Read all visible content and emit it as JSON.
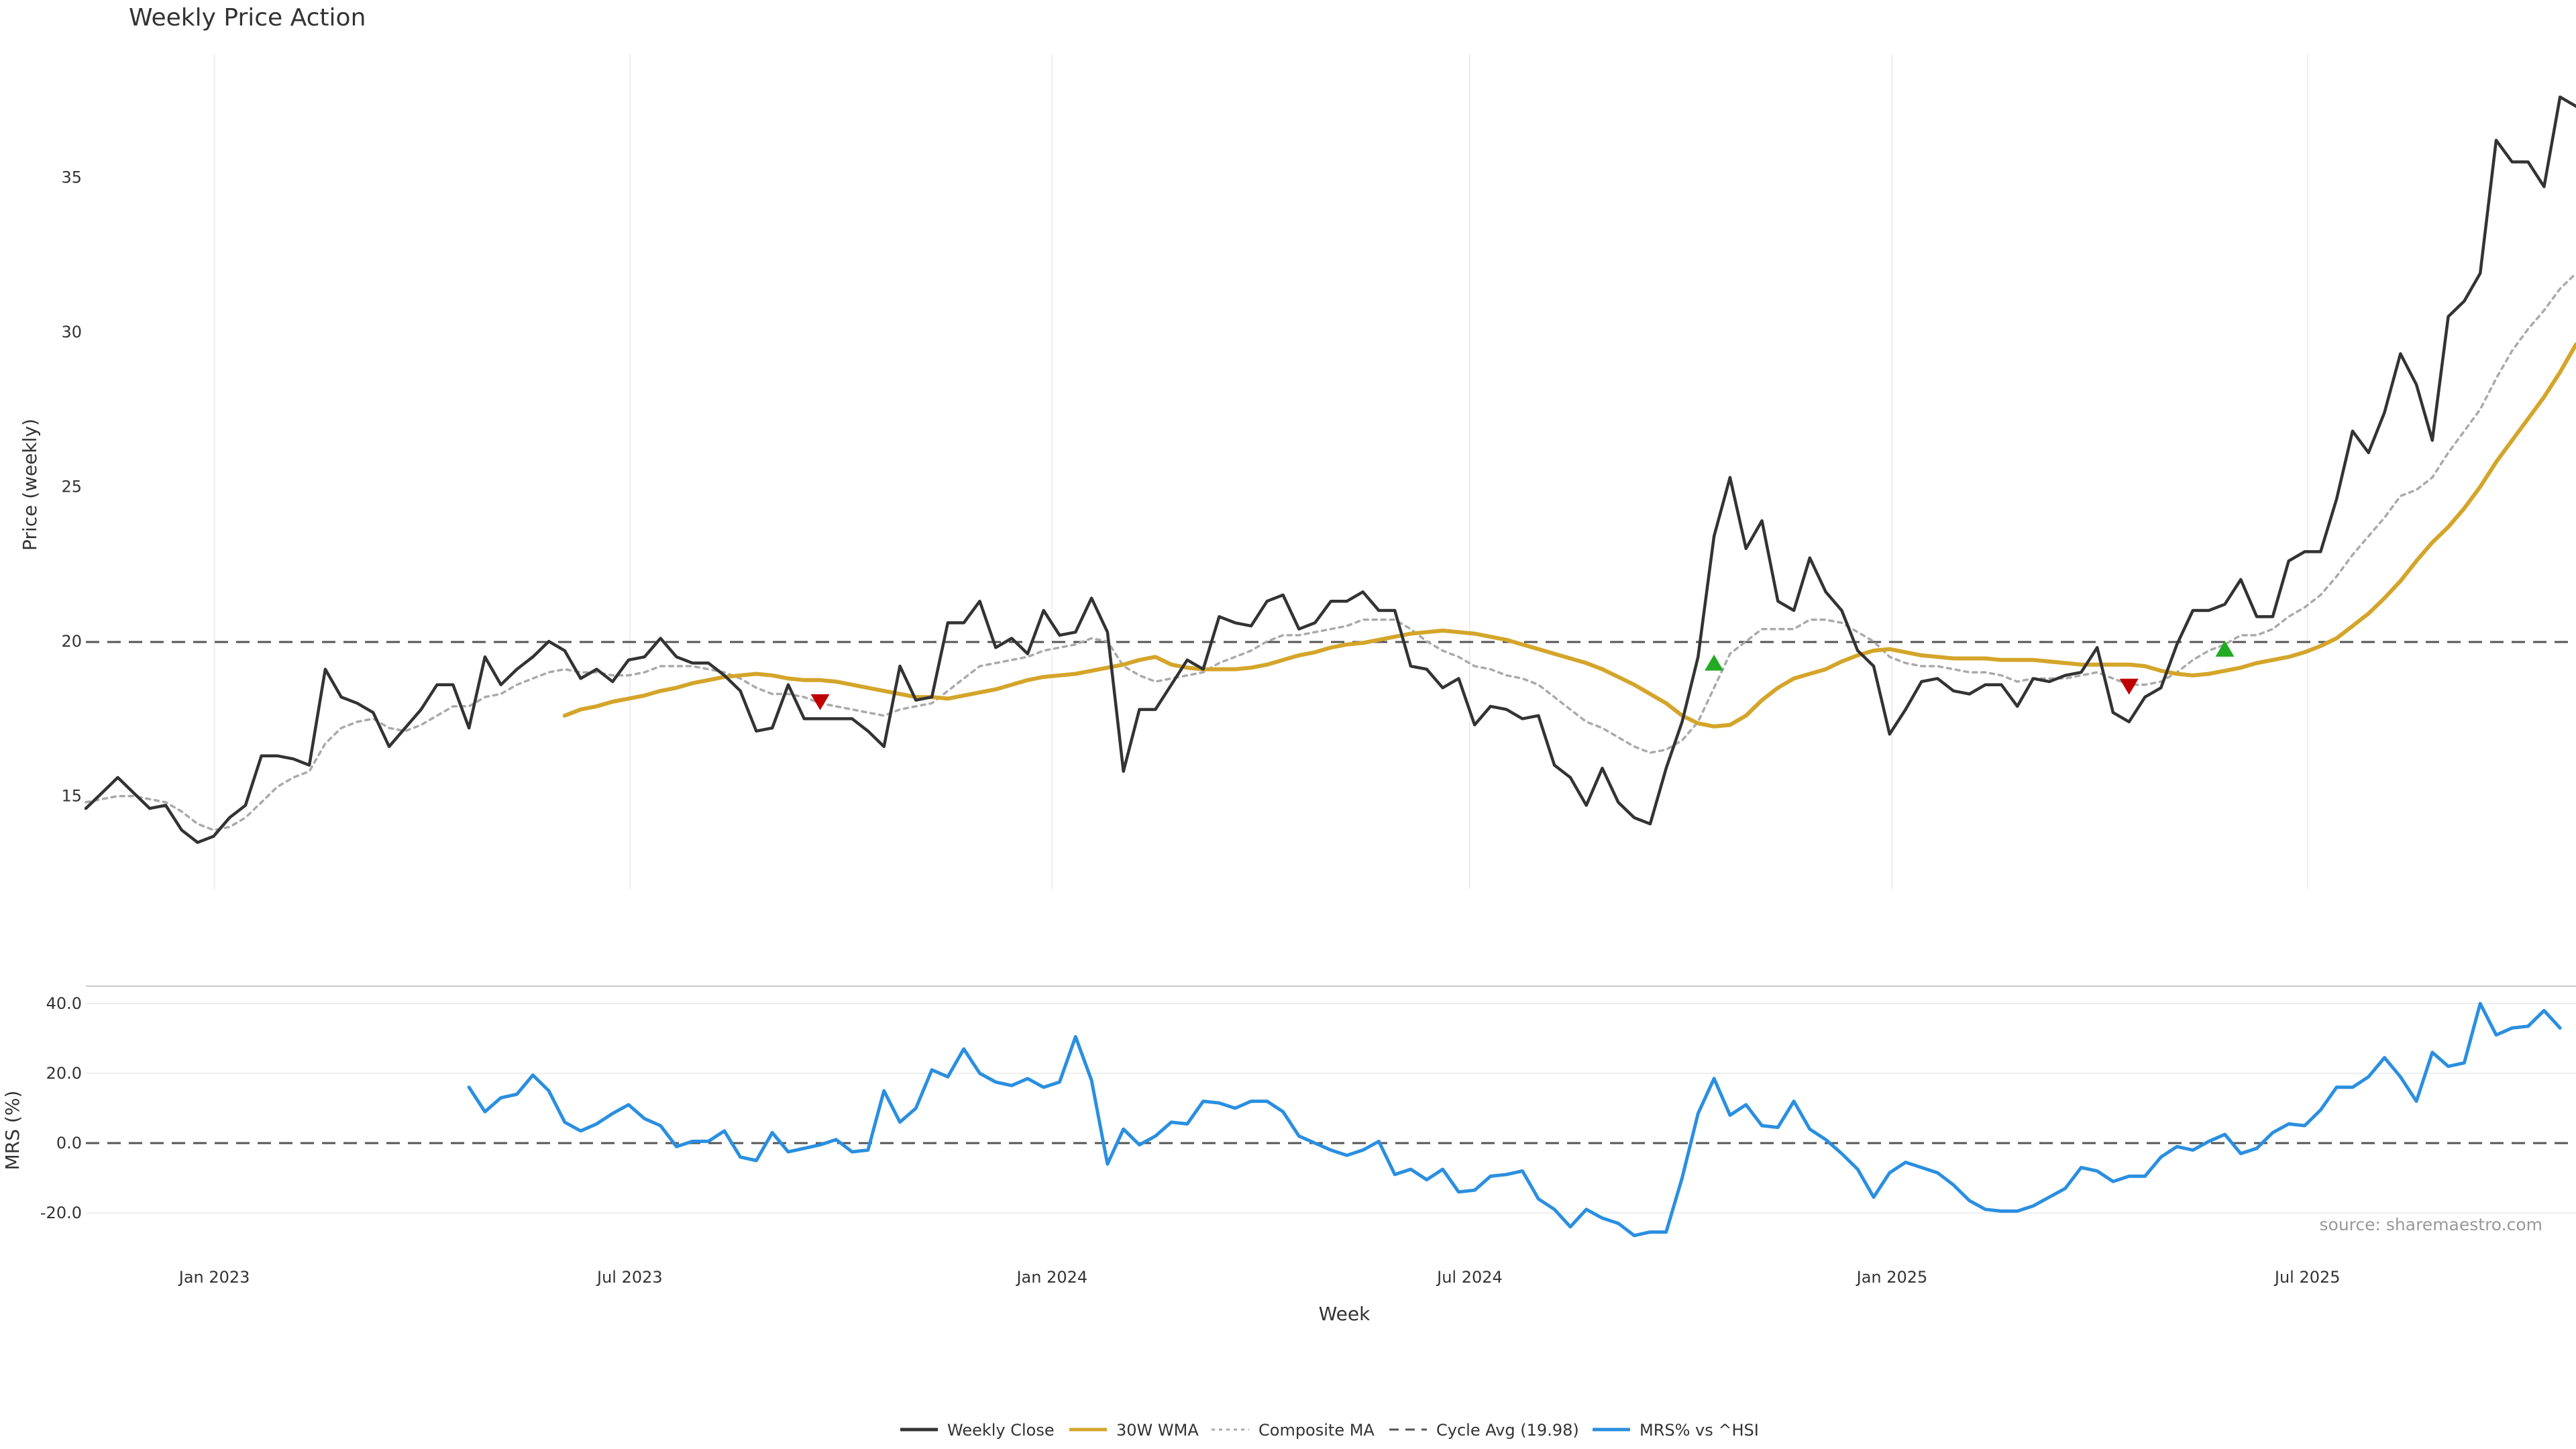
{
  "chart_data": [
    {
      "type": "line",
      "title": "Weekly Price Action",
      "xlabel": "Week",
      "ylabel": "Price (weekly)",
      "ylim": [
        12,
        39
      ],
      "yticks": [
        15,
        20,
        25,
        30,
        35
      ],
      "xticks": [
        {
          "date": "2023-01-01",
          "label": "Jan 2023"
        },
        {
          "date": "2023-07-01",
          "label": "Jul 2023"
        },
        {
          "date": "2024-01-01",
          "label": "Jan 2024"
        },
        {
          "date": "2024-07-01",
          "label": "Jul 2024"
        },
        {
          "date": "2025-01-01",
          "label": "Jan 2025"
        },
        {
          "date": "2025-07-01",
          "label": "Jul 2025"
        }
      ],
      "x_first_week": "2022-11-06",
      "x_last_week": "2025-10-26",
      "grid": true,
      "reference_line": {
        "name": "Cycle Avg (19.98)",
        "value": 19.98
      },
      "series": [
        {
          "name": "Weekly Close",
          "color": "#333333",
          "values": [
            14.6,
            15.1,
            15.6,
            15.1,
            14.6,
            14.7,
            13.9,
            13.5,
            13.7,
            14.3,
            14.7,
            16.3,
            16.3,
            16.2,
            16.0,
            19.1,
            18.2,
            18.0,
            17.7,
            16.6,
            17.2,
            17.8,
            18.6,
            18.6,
            17.2,
            19.5,
            18.6,
            19.1,
            19.5,
            20.0,
            19.7,
            18.8,
            19.1,
            18.7,
            19.4,
            19.5,
            20.1,
            19.5,
            19.3,
            19.3,
            18.9,
            18.4,
            17.1,
            17.2,
            18.6,
            17.5,
            17.5,
            17.5,
            17.5,
            17.1,
            16.6,
            19.2,
            18.1,
            18.2,
            20.6,
            20.6,
            21.3,
            19.8,
            20.1,
            19.6,
            21.0,
            20.2,
            20.3,
            21.4,
            20.3,
            15.8,
            17.8,
            17.8,
            18.6,
            19.4,
            19.1,
            20.8,
            20.6,
            20.5,
            21.3,
            21.5,
            20.4,
            20.6,
            21.3,
            21.3,
            21.6,
            21.0,
            21.0,
            19.2,
            19.1,
            18.5,
            18.8,
            17.3,
            17.9,
            17.8,
            17.5,
            17.6,
            16.0,
            15.6,
            14.7,
            15.9,
            14.8,
            14.3,
            14.1,
            15.9,
            17.4,
            19.5,
            23.4,
            25.3,
            23.0,
            23.9,
            21.3,
            21.0,
            22.7,
            21.6,
            21.0,
            19.7,
            19.2,
            17.0,
            17.8,
            18.7,
            18.8,
            18.4,
            18.3,
            18.6,
            18.6,
            17.9,
            18.8,
            18.7,
            18.9,
            19.0,
            19.8,
            17.7,
            17.4,
            18.2,
            18.5,
            19.9,
            21.0,
            21.0,
            21.2,
            22.0,
            20.8,
            20.8,
            22.6,
            22.9,
            22.9,
            24.6,
            26.8,
            26.1,
            27.4,
            29.3,
            28.3,
            26.5,
            30.5,
            31.0,
            31.9,
            36.2,
            35.5,
            35.5,
            34.7,
            37.6,
            37.3
          ]
        },
        {
          "name": "30W WMA",
          "color": "#D4A52A",
          "start_index": 30,
          "values": [
            17.6,
            17.8,
            17.9,
            18.05,
            18.15,
            18.25,
            18.4,
            18.5,
            18.65,
            18.75,
            18.85,
            18.9,
            18.95,
            18.9,
            18.8,
            18.75,
            18.75,
            18.7,
            18.6,
            18.5,
            18.4,
            18.3,
            18.2,
            18.2,
            18.15,
            18.25,
            18.35,
            18.45,
            18.6,
            18.75,
            18.85,
            18.9,
            18.95,
            19.05,
            19.15,
            19.25,
            19.4,
            19.5,
            19.25,
            19.15,
            19.1,
            19.1,
            19.1,
            19.15,
            19.25,
            19.4,
            19.55,
            19.65,
            19.8,
            19.9,
            19.95,
            20.05,
            20.15,
            20.25,
            20.3,
            20.35,
            20.3,
            20.25,
            20.15,
            20.05,
            19.9,
            19.75,
            19.6,
            19.45,
            19.3,
            19.1,
            18.85,
            18.6,
            18.3,
            18.0,
            17.6,
            17.35,
            17.25,
            17.3,
            17.6,
            18.1,
            18.5,
            18.8,
            18.95,
            19.1,
            19.35,
            19.55,
            19.7,
            19.75,
            19.65,
            19.55,
            19.5,
            19.45,
            19.45,
            19.45,
            19.4,
            19.4,
            19.4,
            19.35,
            19.3,
            19.25,
            19.25,
            19.25,
            19.25,
            19.2,
            19.05,
            18.95,
            18.9,
            18.95,
            19.05,
            19.15,
            19.3,
            19.4,
            19.5,
            19.65,
            19.85,
            20.1,
            20.5,
            20.9,
            21.4,
            21.95,
            22.6,
            23.2,
            23.7,
            24.3,
            25.0,
            25.8,
            26.5,
            27.2,
            27.9,
            28.7,
            29.6
          ]
        },
        {
          "name": "Composite MA",
          "color": "#aaaaaa",
          "values": [
            14.8,
            14.9,
            15.0,
            15.0,
            14.9,
            14.8,
            14.5,
            14.1,
            13.9,
            14.0,
            14.3,
            14.8,
            15.3,
            15.6,
            15.8,
            16.7,
            17.2,
            17.4,
            17.5,
            17.2,
            17.1,
            17.3,
            17.6,
            17.9,
            17.9,
            18.2,
            18.3,
            18.6,
            18.8,
            19.0,
            19.1,
            19.0,
            19.0,
            18.9,
            18.9,
            19.0,
            19.2,
            19.2,
            19.2,
            19.1,
            19.0,
            18.8,
            18.5,
            18.3,
            18.3,
            18.2,
            18.0,
            17.9,
            17.8,
            17.7,
            17.6,
            17.8,
            17.9,
            18.0,
            18.4,
            18.8,
            19.2,
            19.3,
            19.4,
            19.5,
            19.7,
            19.8,
            19.9,
            20.1,
            20.0,
            19.2,
            18.9,
            18.7,
            18.8,
            18.9,
            19.0,
            19.3,
            19.5,
            19.7,
            20.0,
            20.2,
            20.2,
            20.3,
            20.4,
            20.5,
            20.7,
            20.7,
            20.7,
            20.4,
            20.0,
            19.7,
            19.5,
            19.2,
            19.1,
            18.9,
            18.8,
            18.6,
            18.2,
            17.8,
            17.4,
            17.2,
            16.9,
            16.6,
            16.4,
            16.5,
            16.8,
            17.4,
            18.5,
            19.6,
            20.0,
            20.4,
            20.4,
            20.4,
            20.7,
            20.7,
            20.6,
            20.3,
            20.0,
            19.5,
            19.3,
            19.2,
            19.2,
            19.1,
            19.0,
            19.0,
            18.9,
            18.7,
            18.8,
            18.8,
            18.8,
            18.9,
            19.0,
            18.8,
            18.6,
            18.6,
            18.7,
            19.0,
            19.4,
            19.7,
            19.9,
            20.2,
            20.2,
            20.4,
            20.8,
            21.1,
            21.5,
            22.1,
            22.8,
            23.4,
            24.0,
            24.7,
            24.9,
            25.3,
            26.1,
            26.8,
            27.5,
            28.5,
            29.4,
            30.1,
            30.7,
            31.4,
            31.9
          ]
        }
      ],
      "markers": [
        {
          "kind": "sell",
          "color": "#c00000",
          "index": 46,
          "y": 18.05
        },
        {
          "kind": "buy",
          "color": "#22aa22",
          "index": 102,
          "y": 19.3
        },
        {
          "kind": "sell",
          "color": "#c00000",
          "index": 128,
          "y": 18.55
        },
        {
          "kind": "buy",
          "color": "#22aa22",
          "index": 134,
          "y": 19.75
        }
      ]
    },
    {
      "type": "line",
      "xlabel": "Week",
      "ylabel": "MRS (%)",
      "ylim": [
        -30,
        45
      ],
      "yticks": [
        -20.0,
        0.0,
        20.0,
        40.0
      ],
      "ytick_labels": [
        "-20.0",
        "0.0",
        "20.0",
        "40.0"
      ],
      "reference_line": {
        "value": 0
      },
      "series": [
        {
          "name": "MRS% vs ^HSI",
          "color": "#2A8FE0",
          "start_index": 24,
          "values": [
            16,
            9,
            13,
            14,
            19.5,
            15,
            6,
            3.5,
            5.5,
            8.5,
            11,
            7,
            5,
            -1,
            0.5,
            0.5,
            3.5,
            -4,
            -5,
            3,
            -2.5,
            -1.5,
            -0.5,
            1,
            -2.5,
            -2,
            15,
            6,
            10,
            21,
            19,
            27,
            20,
            17.5,
            16.5,
            18.5,
            16,
            17.5,
            30.5,
            18,
            -6,
            4,
            -0.5,
            2,
            6,
            5.5,
            12,
            11.5,
            10,
            12,
            12,
            9,
            2,
            0,
            -2,
            -3.5,
            -2,
            0.5,
            -9,
            -7.5,
            -10.5,
            -7.5,
            -14,
            -13.5,
            -9.5,
            -9,
            -8,
            -16,
            -19,
            -24,
            -19,
            -21.5,
            -23,
            -26.5,
            -25.5,
            -25.5,
            -10,
            8.5,
            18.5,
            8,
            11,
            5,
            4.5,
            12,
            4,
            1,
            -3,
            -7.5,
            -15.5,
            -8.5,
            -5.5,
            -7,
            -8.5,
            -12,
            -16.5,
            -19,
            -19.5,
            -19.5,
            -18,
            -15.5,
            -13,
            -7,
            -8,
            -11,
            -9.5,
            -9.5,
            -4,
            -1,
            -2,
            0.5,
            2.5,
            -3,
            -1.5,
            3,
            5.5,
            5,
            9.5,
            16,
            16,
            19,
            24.5,
            19,
            12,
            26,
            22,
            23,
            40,
            31,
            33,
            33.5,
            38,
            33
          ]
        }
      ]
    }
  ],
  "legend": [
    {
      "name": "Weekly Close",
      "style": "solid",
      "color": "#333333"
    },
    {
      "name": "30W WMA",
      "style": "solid",
      "color": "#D4A52A"
    },
    {
      "name": "Composite MA",
      "style": "dotted",
      "color": "#aaaaaa"
    },
    {
      "name": "Cycle Avg (19.98)",
      "style": "dashed",
      "color": "#555555"
    },
    {
      "name": "MRS% vs ^HSI",
      "style": "solid",
      "color": "#2A8FE0"
    }
  ],
  "legend_placement": "bottom-center",
  "source_text": "source: sharemaestro.com"
}
